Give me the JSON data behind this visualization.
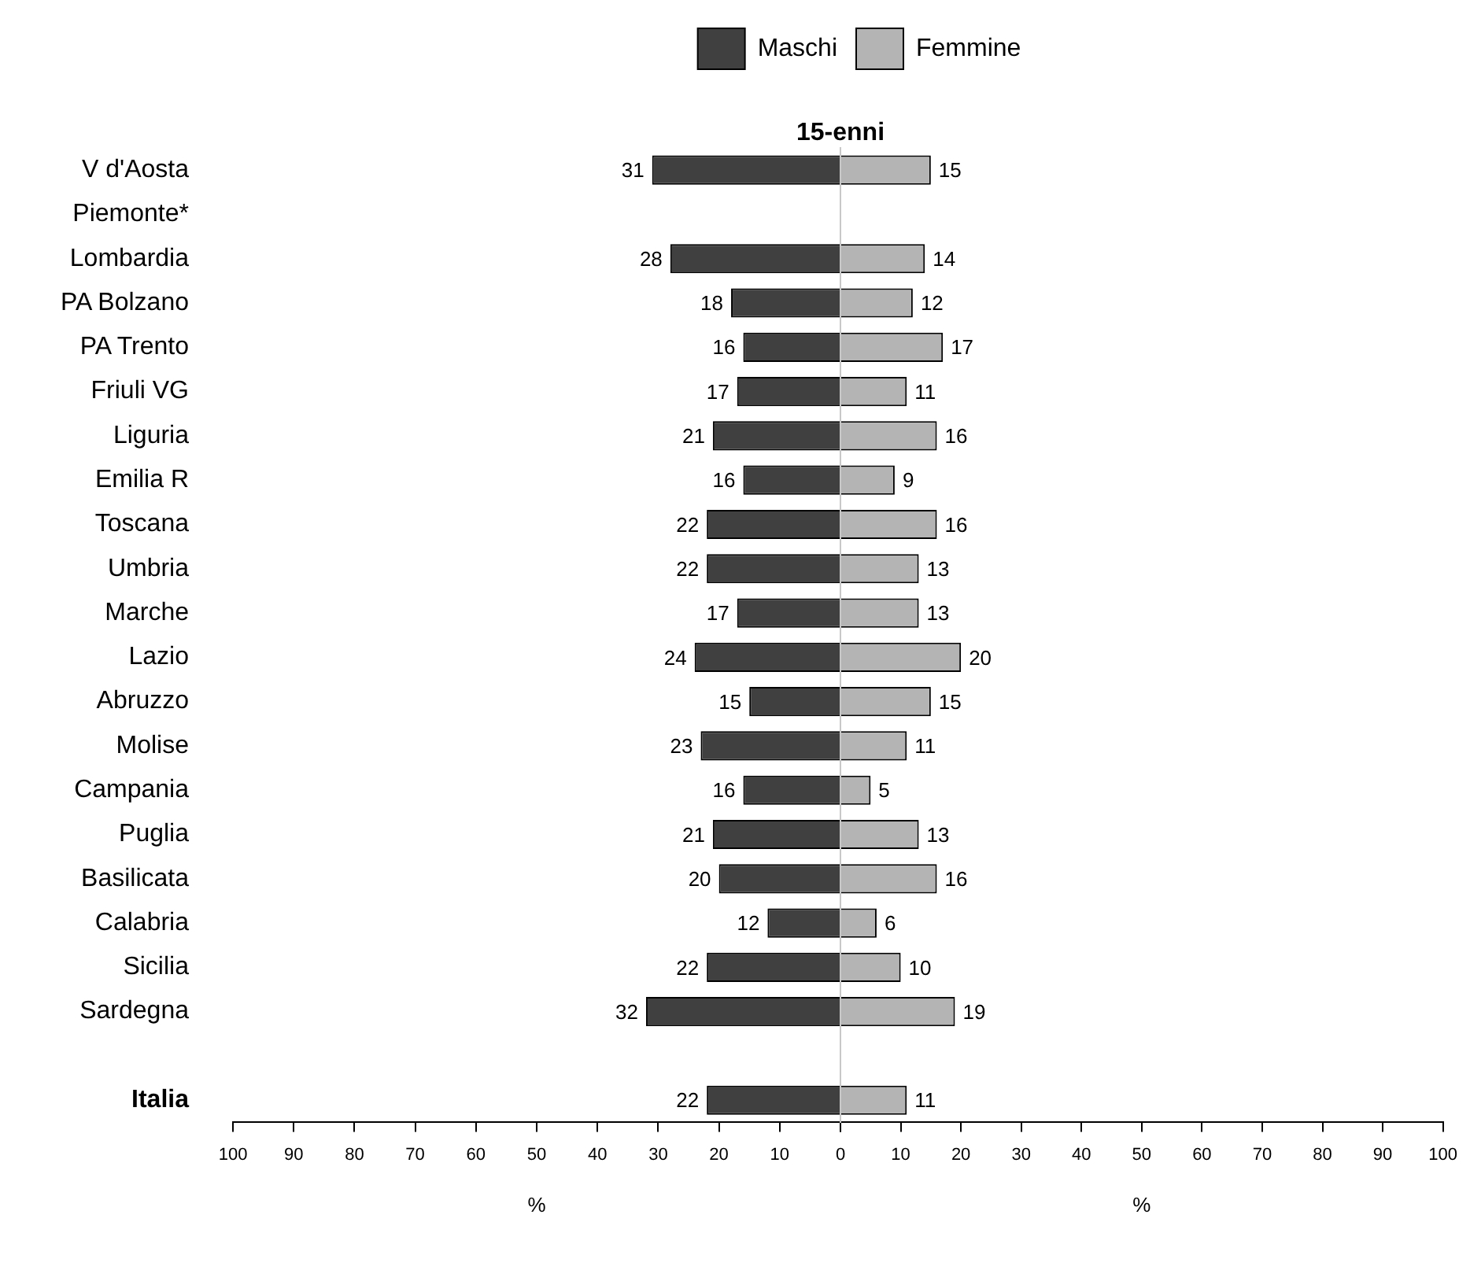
{
  "chart_data": [
    {
      "type": "bar",
      "orientation": "horizontal",
      "title": "15-enni",
      "xlabel": "%",
      "legend": "top",
      "data_labels": true,
      "categories": [
        "V d'Aosta",
        "Piemonte*",
        "Lombardia",
        "PA Bolzano",
        "PA Trento",
        "Friuli VG",
        "Liguria",
        "Emilia R",
        "Toscana",
        "Umbria",
        "Marche",
        "Lazio",
        "Abruzzo",
        "Molise",
        "Campania",
        "Puglia",
        "Basilicata",
        "Calabria",
        "Sicilia",
        "Sardegna",
        null,
        "Italia"
      ],
      "series": [
        {
          "name": "Maschi",
          "color": "#404040",
          "values": [
            31,
            null,
            28,
            18,
            16,
            17,
            21,
            16,
            22,
            22,
            17,
            24,
            15,
            23,
            16,
            21,
            20,
            12,
            22,
            32,
            null,
            22
          ]
        }
      ],
      "xlim": [
        100,
        0
      ],
      "xticks": [
        100,
        90,
        80,
        70,
        60,
        50,
        40,
        30,
        20,
        10,
        {
          "value": 0,
          "label": null
        }
      ]
    },
    {
      "type": "bar",
      "orientation": "horizontal",
      "xlabel": "%",
      "legend": "top",
      "data_labels": true,
      "tick_labels": "x",
      "categories": [
        null,
        null,
        null,
        null,
        null,
        null,
        null,
        null,
        null,
        null,
        null,
        null,
        null,
        null,
        null,
        null,
        null,
        null,
        null,
        null,
        null,
        null
      ],
      "series": [
        {
          "name": "Femmine",
          "color": "#b4b4b4",
          "values": [
            15,
            null,
            14,
            12,
            17,
            11,
            16,
            9,
            16,
            13,
            13,
            20,
            15,
            11,
            5,
            13,
            16,
            6,
            10,
            19,
            null,
            11
          ]
        }
      ],
      "xlim": [
        0,
        100
      ],
      "xticks": [
        0,
        10,
        20,
        30,
        40,
        50,
        60,
        70,
        80,
        90,
        100
      ]
    }
  ]
}
